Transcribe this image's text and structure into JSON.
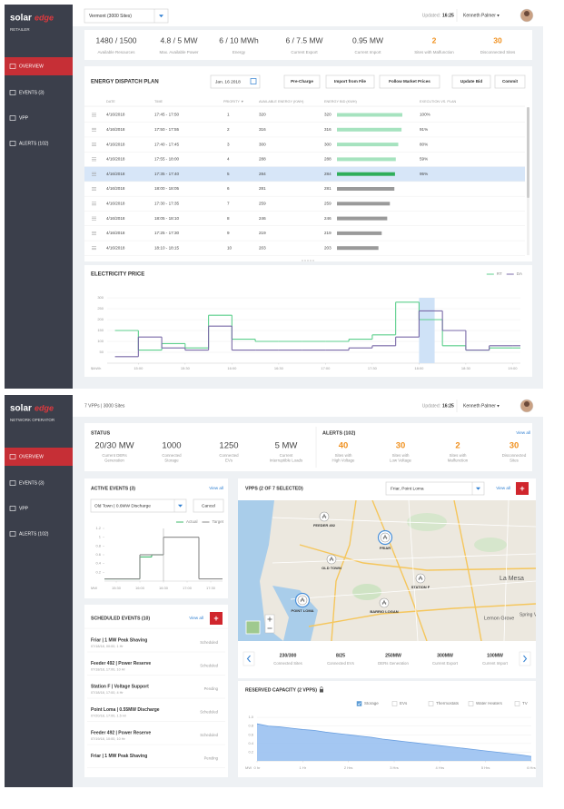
{
  "retailer": {
    "sidebar": {
      "logo": "solar",
      "logo_accent": "edge",
      "role": "RETAILER",
      "menu": [
        "OVERVIEW",
        "EVENTS (3)",
        "VPP",
        "ALERTS (102)"
      ],
      "active": 0
    },
    "header": {
      "site_select": "Vermont (3000 Sites)",
      "updated_label": "Updated:",
      "updated_time": "16:25",
      "user": "Kenneth Palmer ▾"
    },
    "stats": [
      {
        "value": "1480 / 1500",
        "label": "Available Resources"
      },
      {
        "value": "4.8 / 5 MW",
        "label": "Max. Available Power"
      },
      {
        "value": "6 / 10 MWh",
        "label": "Energy"
      },
      {
        "value": "6 / 7.5 MW",
        "label": "Current Export"
      },
      {
        "value": "0.95 MW",
        "label": "Current Import"
      },
      {
        "value": "2",
        "label": "Sites with Malfunction",
        "alert": true
      },
      {
        "value": "30",
        "label": "Disconnected Sites",
        "alert": true
      }
    ],
    "dispatch": {
      "title": "ENERGY DISPATCH PLAN",
      "date": "Jan. 16 2018",
      "buttons": [
        "Pre-Charge",
        "Import from File",
        "Follow Market Prices",
        "Update Bid",
        "Commit"
      ],
      "columns": [
        "DATE",
        "TIME",
        "PRIORITY ▼",
        "AVAILABLE ENERGY (KWH)",
        "ENERGY BID (KWH)",
        "EXECUTION VS. PLAN"
      ],
      "rows": [
        [
          "4/16/2018",
          "17:45 - 17:50",
          1,
          320,
          320,
          "100%"
        ],
        [
          "4/16/2018",
          "17:50 - 17:55",
          2,
          316,
          316,
          "91%"
        ],
        [
          "4/16/2018",
          "17:40 - 17:45",
          3,
          300,
          300,
          "80%"
        ],
        [
          "4/16/2018",
          "17:55 - 18:00",
          4,
          288,
          288,
          "59%"
        ],
        [
          "4/16/2018",
          "17:35 - 17:40",
          5,
          284,
          284,
          "95%"
        ],
        [
          "4/16/2018",
          "18:00 - 18:05",
          6,
          281,
          281,
          null
        ],
        [
          "4/16/2018",
          "17:30 - 17:35",
          7,
          259,
          259,
          null
        ],
        [
          "4/16/2018",
          "18:05 - 18:10",
          8,
          246,
          246,
          null
        ],
        [
          "4/16/2018",
          "17:25 - 17:30",
          9,
          219,
          219,
          null
        ],
        [
          "4/16/2018",
          "18:10 - 18:15",
          10,
          203,
          203,
          null
        ]
      ],
      "selected_row": 4
    },
    "price_chart": {
      "type": "line",
      "title": "ELECTRICITY PRICE",
      "y_unit": "$/kWh",
      "x": [
        "14:45",
        "15:00",
        "15:15",
        "15:30",
        "15:45",
        "16:00",
        "16:15",
        "16:30",
        "16:45",
        "17:00",
        "17:15",
        "17:30",
        "17:45",
        "18:00",
        "18:15",
        "18:30",
        "18:45",
        "19:00"
      ],
      "xlim": [
        "14:40",
        "19:05"
      ],
      "xticks": [
        "15:00",
        "15:30",
        "16:00",
        "16:30",
        "17:00",
        "17:30",
        "18:00",
        "18:30",
        "19:00"
      ],
      "ylim": [
        0,
        300
      ],
      "yticks": [
        50,
        100,
        150,
        200,
        250,
        300
      ],
      "grid": true,
      "series": [
        {
          "name": "RT",
          "color": "#5ccf8c",
          "values": [
            150,
            60,
            90,
            70,
            220,
            110,
            100,
            100,
            100,
            100,
            110,
            130,
            280,
            200,
            80,
            60,
            70,
            70
          ]
        },
        {
          "name": "DA",
          "color": "#7a6aa8",
          "values": [
            30,
            120,
            70,
            60,
            170,
            60,
            60,
            60,
            60,
            60,
            70,
            80,
            120,
            240,
            150,
            60,
            80,
            80
          ]
        }
      ]
    }
  },
  "operator": {
    "sidebar": {
      "logo": "solar",
      "logo_accent": "edge",
      "role": "NETWORK OPERATOR",
      "menu": [
        "OVERVIEW",
        "EVENTS (3)",
        "VPP",
        "ALERTS (102)"
      ],
      "active": 0
    },
    "header": {
      "scope": "7 VPPs | 3000 Sites",
      "updated_label": "Updated:",
      "updated_time": "16:25",
      "user": "Kenneth Palmer ▾"
    },
    "status": {
      "title": "STATUS",
      "items": [
        {
          "value": "20/30 MW",
          "label": [
            "Current DERs",
            "Generation"
          ]
        },
        {
          "value": "1000",
          "label": [
            "Connected",
            "Storage"
          ]
        },
        {
          "value": "1250",
          "label": [
            "Connected",
            "EVs"
          ]
        },
        {
          "value": "5 MW",
          "label": [
            "Current",
            "Interruptible Loads"
          ]
        }
      ]
    },
    "alerts": {
      "title": "ALERTS (102)",
      "link": "View all",
      "items": [
        {
          "value": "40",
          "label": [
            "Sites with",
            "High Voltage"
          ]
        },
        {
          "value": "30",
          "label": [
            "Sites with",
            "Low Voltage"
          ]
        },
        {
          "value": "2",
          "label": [
            "Sites with",
            "Malfunction"
          ]
        },
        {
          "value": "30",
          "label": [
            "Disconnected",
            "Sites"
          ]
        }
      ]
    },
    "active_events": {
      "title": "ACTIVE EVENTS (3)",
      "link": "View all",
      "select": "Old Town | 0.6MW Discharge",
      "cancel": "Cancel",
      "chart": {
        "type": "line",
        "y_unit": "MW",
        "x": [
          "15:15",
          "15:30",
          "15:45",
          "16:00",
          "16:15",
          "16:30",
          "16:45",
          "17:00",
          "17:15",
          "17:30",
          "17:45"
        ],
        "xlim": [
          "15:15",
          "17:45"
        ],
        "xticks": [
          "15:30",
          "16:00",
          "16:30",
          "17:00",
          "17:30"
        ],
        "ylim": [
          0,
          1.2
        ],
        "yticks": [
          0.2,
          0.4,
          0.6,
          0.8,
          1,
          1.2
        ],
        "grid": false,
        "series": [
          {
            "name": "Actual",
            "color": "#3cb86a",
            "values": [
              0.05,
              0.05,
              0.05,
              0.55,
              0.6,
              null,
              null,
              null,
              null,
              null,
              null
            ]
          },
          {
            "name": "Target",
            "color": "#888888",
            "values": [
              0.05,
              0.05,
              0.05,
              0.6,
              0.6,
              1,
              1,
              1,
              0.05,
              0.05,
              0.05
            ]
          }
        ]
      }
    },
    "scheduled": {
      "title": "SCHEDULED EVENTS (10)",
      "link": "View all",
      "add": "+",
      "items": [
        {
          "name": "Friar | 1 MW Peak Shaving",
          "when": "07/18/18, 00:00, 1 Hr",
          "status": "Scheduled"
        },
        {
          "name": "Feeder 492 | Power Reserve",
          "when": "07/18/18, 17:00, 10 Hr",
          "status": "Scheduled"
        },
        {
          "name": "Station F | Voltage Support",
          "when": "07/18/18, 17:00, 4 Hr",
          "status": "Pending"
        },
        {
          "name": "Point Loma | 0.55MW Discharge",
          "when": "07/20/18, 17:00, 1.5 Hr",
          "status": "Scheduled"
        },
        {
          "name": "Feeder 492 | Power Reserve",
          "when": "07/19/18, 10:00, 10 Hr",
          "status": "Scheduled"
        },
        {
          "name": "Friar | 1 MW Peak Shaving",
          "status": "Pending"
        }
      ]
    },
    "vpps": {
      "title": "VPPS (2 OF 7 SELECTED)",
      "select": "Friar, Point Loma",
      "link": "View all",
      "add": "+",
      "map_labels": [
        "FEEDER 492",
        "FRIAR",
        "OLD TOWN",
        "STATION F",
        "POINT LOMA",
        "BARRIO LOGAN"
      ],
      "selected": [
        1,
        4
      ],
      "places": [
        "La Mesa",
        "Lemon Grove",
        "Spring V"
      ],
      "stats": [
        {
          "value": "230/300",
          "label": "Connected Sites"
        },
        {
          "value": "8/25",
          "label": "Connected EVs"
        },
        {
          "value": "250MW",
          "label": "DERs Generation"
        },
        {
          "value": "300MW",
          "label": "Current Export"
        },
        {
          "value": "100MW",
          "label": "Current Import"
        }
      ]
    },
    "reserved": {
      "title": "RESERVED CAPACITY (2 VPPS)",
      "filters": [
        {
          "name": "Storage",
          "checked": true
        },
        {
          "name": "EVs",
          "checked": false
        },
        {
          "name": "Thermostats",
          "checked": false
        },
        {
          "name": "Water Heaters",
          "checked": false
        },
        {
          "name": "TV",
          "checked": false
        }
      ],
      "chart": {
        "type": "area",
        "y_unit": "MW",
        "color": "#94bdf0",
        "x": [
          0,
          0.25,
          0.5,
          0.75,
          1,
          1.25,
          1.5,
          1.75,
          2,
          2.25,
          2.5,
          2.75,
          3,
          3.25,
          3.5,
          3.75,
          4,
          4.25,
          4.5,
          4.75,
          5,
          5.25,
          5.5,
          5.75,
          6
        ],
        "xlim": [
          0,
          6
        ],
        "xticks": [
          {
            "value": 0,
            "label": "0 hr"
          },
          {
            "value": 1,
            "label": "1 Hr"
          },
          {
            "value": 2,
            "label": "2 Hrs"
          },
          {
            "value": 3,
            "label": "3 Hrs"
          },
          {
            "value": 4,
            "label": "4 Hrs"
          },
          {
            "value": 5,
            "label": "5 Hrs"
          },
          {
            "value": 6,
            "label": "6 Hrs"
          }
        ],
        "ylim": [
          0,
          1
        ],
        "yticks": [
          0.2,
          0.4,
          0.6,
          0.8,
          {
            "value": 1,
            "label": "1.0"
          }
        ],
        "grid": true,
        "values": [
          0.85,
          0.8,
          0.78,
          0.75,
          0.72,
          0.7,
          0.66,
          0.63,
          0.6,
          0.57,
          0.54,
          0.5,
          0.47,
          0.44,
          0.41,
          0.38,
          0.35,
          0.32,
          0.29,
          0.26,
          0.23,
          0.2,
          0.17,
          0.14,
          0.1
        ]
      }
    }
  }
}
